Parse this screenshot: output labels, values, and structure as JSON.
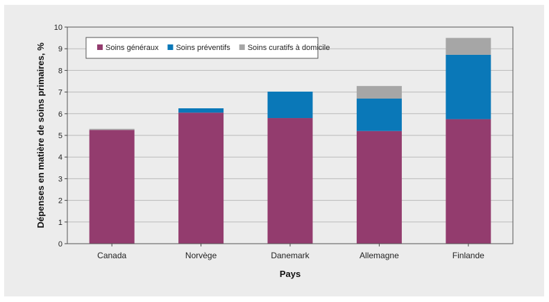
{
  "chart_data": {
    "type": "bar",
    "stacked": true,
    "categories": [
      "Canada",
      "Norvège",
      "Danemark",
      "Allemagne",
      "Finlande"
    ],
    "series": [
      {
        "name": "Soins généraux",
        "color": "#933c6e",
        "values": [
          5.25,
          6.05,
          5.8,
          5.2,
          5.75
        ]
      },
      {
        "name": "Soins préventifs",
        "color": "#0a78b8",
        "values": [
          0.0,
          0.2,
          1.22,
          1.5,
          2.97
        ]
      },
      {
        "name": "Soins curatifs à domicile",
        "color": "#a6a6a6",
        "values": [
          0.05,
          0.0,
          0.0,
          0.58,
          0.78
        ]
      }
    ],
    "xlabel": "Pays",
    "ylabel": "Dépenses en matière de soins primaires, %",
    "ylim": [
      0,
      10
    ],
    "yticks": [
      0,
      1,
      2,
      3,
      4,
      5,
      6,
      7,
      8,
      9,
      10
    ],
    "grid": true,
    "legend_position": "top-left"
  }
}
